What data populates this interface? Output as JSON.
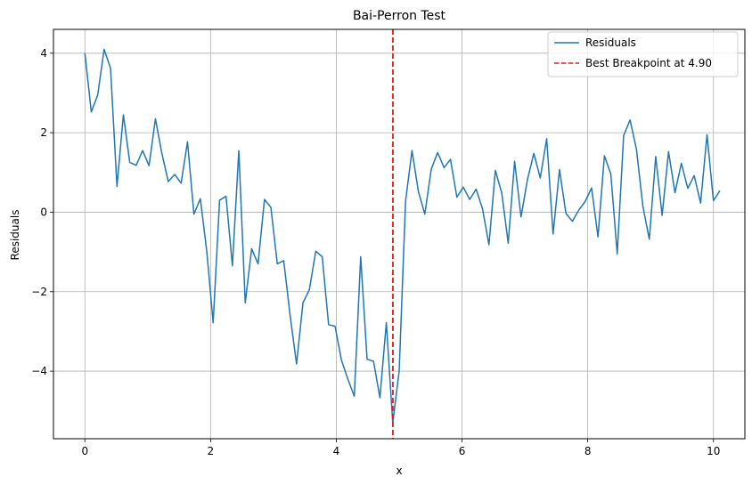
{
  "chart_data": {
    "type": "line",
    "title": "Bai-Perron Test",
    "xlabel": "x",
    "ylabel": "Residuals",
    "xlim": [
      -0.5,
      10.5
    ],
    "ylim": [
      -5.7,
      4.6
    ],
    "x_ticks": [
      0,
      2,
      4,
      6,
      8,
      10
    ],
    "x_tick_labels": [
      "0",
      "2",
      "4",
      "6",
      "8",
      "10"
    ],
    "y_ticks": [
      -4,
      -2,
      0,
      2,
      4
    ],
    "y_tick_labels": [
      "−4",
      "−2",
      "0",
      "2",
      "4"
    ],
    "grid": true,
    "legend_position": "top-right",
    "series": [
      {
        "name": "Residuals",
        "color": "#1f77b4",
        "style": "solid",
        "x_start": 0,
        "x_step": 0.10204,
        "values": [
          4.0,
          2.52,
          2.95,
          4.1,
          3.62,
          0.65,
          2.45,
          1.25,
          1.18,
          1.55,
          1.17,
          2.35,
          1.48,
          0.77,
          0.95,
          0.73,
          1.77,
          -0.05,
          0.34,
          -0.98,
          -2.78,
          0.3,
          0.4,
          -1.35,
          1.55,
          -2.28,
          -0.92,
          -1.3,
          0.32,
          0.12,
          -1.3,
          -1.22,
          -2.6,
          -3.82,
          -2.28,
          -1.95,
          -0.98,
          -1.12,
          -2.83,
          -2.87,
          -3.72,
          -4.2,
          -4.63,
          -1.12,
          -3.7,
          -3.75,
          -4.67,
          -2.78,
          -5.3,
          -4.0,
          0.28,
          1.55,
          0.52,
          -0.05,
          1.08,
          1.5,
          1.12,
          1.33,
          0.38,
          0.63,
          0.32,
          0.58,
          0.08,
          -0.82,
          1.05,
          0.48,
          -0.78,
          1.28,
          -0.12,
          0.82,
          1.48,
          0.86,
          1.85,
          -0.55,
          1.07,
          -0.03,
          -0.23,
          0.05,
          0.27,
          0.61,
          -0.62,
          1.42,
          0.96,
          -1.05,
          1.93,
          2.32,
          1.58,
          0.15,
          -0.68,
          1.4,
          -0.08,
          1.52,
          0.49,
          1.23,
          0.6,
          0.92,
          0.23,
          1.95,
          0.29,
          0.54
        ]
      }
    ],
    "breakpoint": {
      "name": "Best Breakpoint at 4.90",
      "x": 4.9,
      "color": "#e31a1c",
      "style": "dashed"
    }
  }
}
